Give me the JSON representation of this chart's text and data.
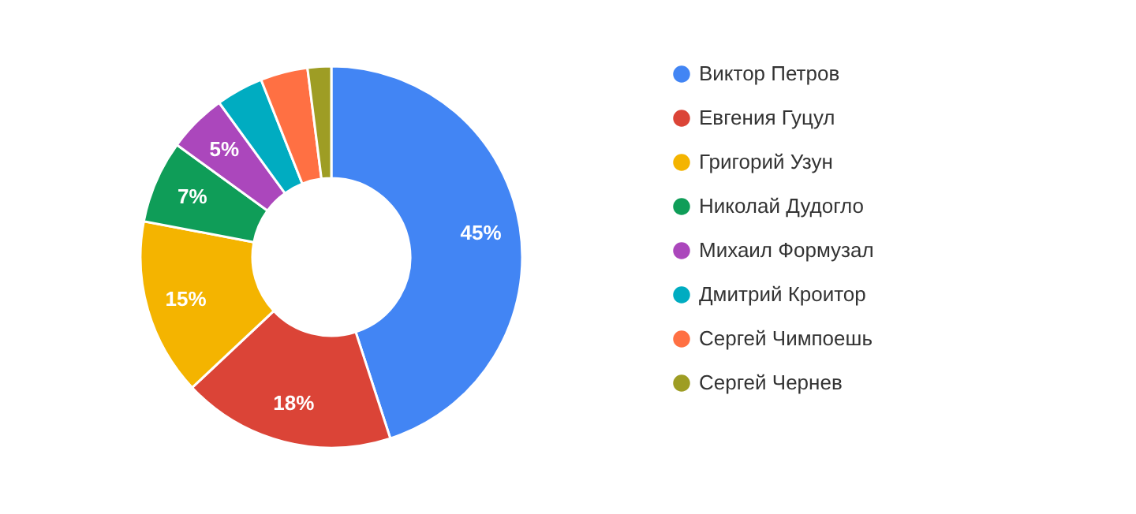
{
  "chart_data": {
    "type": "donut",
    "categories": [
      "Виктор Петров",
      "Евгения Гуцул",
      "Григорий Узун",
      "Николай Дудогло",
      "Михаил Формузал",
      "Дмитрий Кроитор",
      "Сергей Чимпоешь",
      "Сергей Чернев"
    ],
    "values": [
      45,
      18,
      15,
      7,
      5,
      4,
      4,
      2
    ],
    "colors": [
      "#4285f4",
      "#db4437",
      "#f4b400",
      "#0f9d58",
      "#ab47bc",
      "#00acc1",
      "#ff7043",
      "#9e9d24"
    ],
    "value_labels": [
      "45%",
      "18%",
      "15%",
      "7%",
      "5%",
      null,
      null,
      null
    ],
    "legend": "right"
  }
}
